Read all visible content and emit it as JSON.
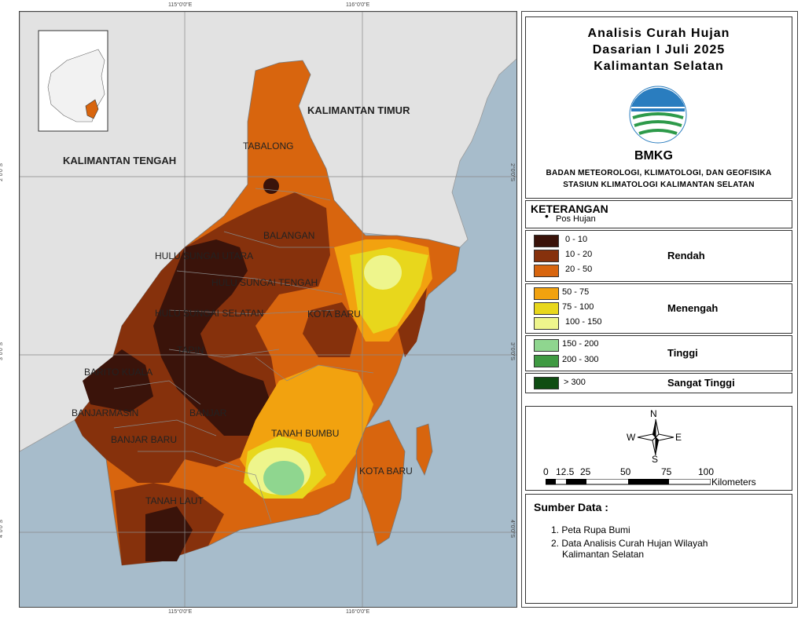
{
  "title": {
    "line1": "Analisis Curah Hujan",
    "line2": "Dasarian I Juli 2025",
    "line3": "Kalimantan Selatan"
  },
  "logo_text": "BMKG",
  "agency": {
    "line1": "BADAN METEOROLOGI, KLIMATOLOGI, DAN GEOFISIKA",
    "line2": "STASIUN KLIMATOLOGI KALIMANTAN SELATAN"
  },
  "legend": {
    "heading": "KETERANGAN",
    "point_label": "Pos Hujan",
    "groups": [
      {
        "category": "Rendah",
        "classes": [
          {
            "label": "0 - 10",
            "color": "#3a130a"
          },
          {
            "label": "10 - 20",
            "color": "#86310c"
          },
          {
            "label": "20 - 50",
            "color": "#d8650e"
          }
        ]
      },
      {
        "category": "Menengah",
        "classes": [
          {
            "label": "50 - 75",
            "color": "#f2a20f"
          },
          {
            "label": "75 - 100",
            "color": "#e8d71c"
          },
          {
            "label": "100 - 150",
            "color": "#eef58c"
          }
        ]
      },
      {
        "category": "Tinggi",
        "classes": [
          {
            "label": "150 - 200",
            "color": "#8fd68f"
          },
          {
            "label": "200 - 300",
            "color": "#3f9a42"
          }
        ]
      },
      {
        "category": "Sangat Tinggi",
        "classes": [
          {
            "label": "> 300",
            "color": "#0f4d12"
          }
        ]
      }
    ]
  },
  "compass": {
    "n": "N",
    "s": "S",
    "e": "E",
    "w": "W"
  },
  "scalebar": {
    "ticks": [
      "0",
      "12.5",
      "25",
      "50",
      "75",
      "100"
    ],
    "unit": "Kilometers"
  },
  "sources": {
    "heading": "Sumber Data :",
    "items": [
      "1. Peta Rupa Bumi",
      "2. Data Analisis Curah Hujan Wilayah",
      "Kalimantan Selatan"
    ]
  },
  "map": {
    "neighbors": [
      "KALIMANTAN TIMUR",
      "KALIMANTAN TENGAH"
    ],
    "regions": [
      "TABALONG",
      "BALANGAN",
      "HULU SUNGAI UTARA",
      "HULU SUNGAI TENGAH",
      "HULU SUNGAI SELATAN",
      "KOTA BARU",
      "TAPIN",
      "BARITO KUALA",
      "BANJARMASIN",
      "BANJAR",
      "BANJAR BARU",
      "TANAH BUMBU",
      "TANAH LAUT",
      "KOTA BARU"
    ],
    "grid_labels": {
      "lon": [
        "115°0'0\"E",
        "116°0'0\"E"
      ],
      "lat": [
        "2°0'0\"S",
        "3°0'0\"S",
        "4°0'0\"S"
      ]
    }
  },
  "colors": {
    "sea": "#a7bccb",
    "land": "#e2e2e2"
  }
}
